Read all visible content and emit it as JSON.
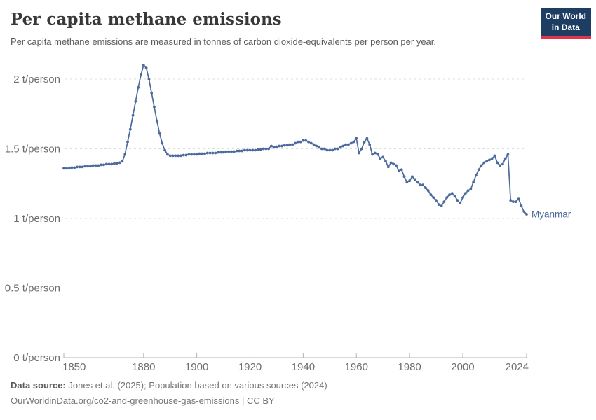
{
  "header": {
    "title": "Per capita methane emissions",
    "subtitle": "Per capita methane emissions are measured in tonnes of carbon dioxide-equivalents per person per year."
  },
  "logo": {
    "line1": "Our World",
    "line2": "in Data"
  },
  "entity_label": "Myanmar",
  "colors": {
    "line": "#4c6a9c",
    "grid": "#dcdcdc",
    "axis": "#b3b3b3",
    "tick_label": "#6e6e6e",
    "logo_bg": "#1d3d63",
    "logo_accent": "#e0354c"
  },
  "chart_data": {
    "type": "line",
    "title": "Per capita methane emissions",
    "unit": "t/person",
    "x_start": 1850,
    "x_end": 2024,
    "ylim": [
      0,
      2.2
    ],
    "grid": "horizontal-dashed",
    "legend_position": "label-at-line-end",
    "y_ticks": [
      {
        "value": 0,
        "label": "0 t/person"
      },
      {
        "value": 0.5,
        "label": "0.5 t/person"
      },
      {
        "value": 1,
        "label": "1 t/person"
      },
      {
        "value": 1.5,
        "label": "1.5 t/person"
      },
      {
        "value": 2,
        "label": "2 t/person"
      }
    ],
    "x_ticks": [
      1850,
      1880,
      1900,
      1920,
      1940,
      1960,
      1980,
      2000,
      2024
    ],
    "series": [
      {
        "name": "Myanmar",
        "color": "#4c6a9c",
        "x_start": 1850,
        "x_step": 1,
        "values": [
          1.36,
          1.36,
          1.36,
          1.365,
          1.365,
          1.37,
          1.37,
          1.37,
          1.375,
          1.375,
          1.375,
          1.38,
          1.38,
          1.38,
          1.385,
          1.385,
          1.39,
          1.39,
          1.39,
          1.395,
          1.395,
          1.4,
          1.41,
          1.46,
          1.55,
          1.64,
          1.74,
          1.84,
          1.94,
          2.03,
          2.1,
          2.08,
          2.0,
          1.9,
          1.8,
          1.7,
          1.61,
          1.54,
          1.49,
          1.46,
          1.45,
          1.45,
          1.45,
          1.45,
          1.45,
          1.455,
          1.455,
          1.46,
          1.46,
          1.46,
          1.46,
          1.465,
          1.465,
          1.465,
          1.47,
          1.47,
          1.47,
          1.47,
          1.475,
          1.475,
          1.475,
          1.48,
          1.48,
          1.48,
          1.48,
          1.485,
          1.485,
          1.485,
          1.49,
          1.49,
          1.49,
          1.49,
          1.49,
          1.495,
          1.495,
          1.5,
          1.5,
          1.5,
          1.52,
          1.51,
          1.515,
          1.52,
          1.52,
          1.525,
          1.525,
          1.53,
          1.53,
          1.54,
          1.55,
          1.55,
          1.56,
          1.56,
          1.55,
          1.54,
          1.53,
          1.52,
          1.51,
          1.5,
          1.5,
          1.49,
          1.49,
          1.49,
          1.5,
          1.5,
          1.51,
          1.52,
          1.53,
          1.53,
          1.54,
          1.55,
          1.575,
          1.47,
          1.5,
          1.55,
          1.575,
          1.53,
          1.46,
          1.47,
          1.46,
          1.43,
          1.44,
          1.41,
          1.37,
          1.4,
          1.39,
          1.38,
          1.34,
          1.35,
          1.3,
          1.26,
          1.27,
          1.3,
          1.28,
          1.26,
          1.24,
          1.24,
          1.22,
          1.2,
          1.17,
          1.15,
          1.13,
          1.1,
          1.09,
          1.12,
          1.15,
          1.17,
          1.18,
          1.16,
          1.13,
          1.11,
          1.15,
          1.18,
          1.2,
          1.21,
          1.26,
          1.31,
          1.35,
          1.38,
          1.4,
          1.41,
          1.42,
          1.43,
          1.45,
          1.4,
          1.38,
          1.39,
          1.43,
          1.46,
          1.13,
          1.12,
          1.12,
          1.14,
          1.09,
          1.05,
          1.03
        ]
      }
    ]
  },
  "footer": {
    "source_label": "Data source:",
    "source_text": "Jones et al. (2025); Population based on various sources (2024)",
    "link_line": "OurWorldinData.org/co2-and-greenhouse-gas-emissions | CC BY"
  }
}
